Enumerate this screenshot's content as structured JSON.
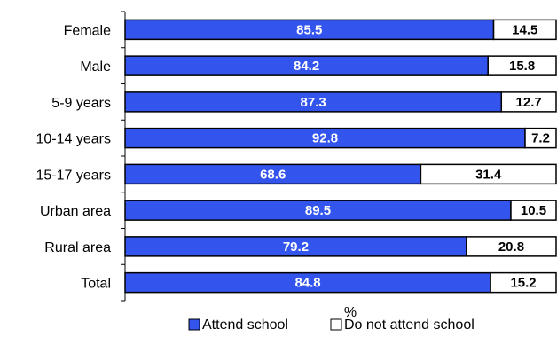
{
  "chart_data": {
    "type": "bar",
    "orientation": "horizontal",
    "stacked": true,
    "categories": [
      "Female",
      "Male",
      "5-9 years",
      "10-14 years",
      "15-17 years",
      "Urban area",
      "Rural area",
      "Total"
    ],
    "series": [
      {
        "name": "Attend school",
        "values": [
          85.5,
          84.2,
          87.3,
          92.8,
          68.6,
          89.5,
          79.2,
          84.8
        ],
        "color": "#3355ee"
      },
      {
        "name": "Do not attend school",
        "values": [
          14.5,
          15.8,
          12.7,
          7.2,
          31.4,
          10.5,
          20.8,
          15.2
        ],
        "color": "#ffffff"
      }
    ],
    "xlabel": "%",
    "xlim": [
      0,
      100
    ],
    "grid": false,
    "legend": "bottom"
  }
}
